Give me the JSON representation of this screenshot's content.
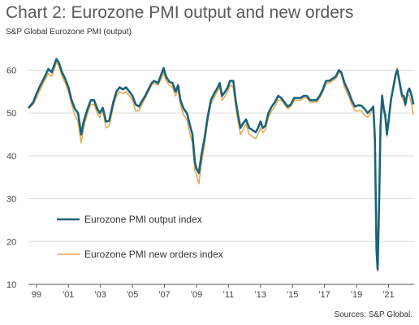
{
  "chart_data": {
    "type": "line",
    "title": "Chart 2: Eurozone PMI output and new orders",
    "subtitle": "S&P Global Eurozone PMI (output)",
    "source": "Sources: S&P Global.",
    "ylim": [
      10,
      65
    ],
    "yticks": [
      10,
      20,
      30,
      40,
      50,
      60
    ],
    "xlim": [
      1998.5,
      2022.6
    ],
    "xticks": [
      {
        "value": 1999,
        "label": "99"
      },
      {
        "value": 2001,
        "label": "'01"
      },
      {
        "value": 2003,
        "label": "'03"
      },
      {
        "value": 2005,
        "label": "'05"
      },
      {
        "value": 2007,
        "label": "'07"
      },
      {
        "value": 2009,
        "label": "'09"
      },
      {
        "value": 2011,
        "label": "'11"
      },
      {
        "value": 2013,
        "label": "'13"
      },
      {
        "value": 2015,
        "label": "'15"
      },
      {
        "value": 2017,
        "label": "'17"
      },
      {
        "value": 2019,
        "label": "'19"
      },
      {
        "value": 2021,
        "label": "'21"
      }
    ],
    "grid": "horizontal",
    "legend_position": "left-middle",
    "series": [
      {
        "name": "Eurozone PMI output index",
        "color": "#1b6378",
        "points": [
          [
            1998.5,
            51.2
          ],
          [
            1998.8,
            52.5
          ],
          [
            1999.0,
            54.5
          ],
          [
            1999.25,
            56.5
          ],
          [
            1999.5,
            58.3
          ],
          [
            1999.75,
            60.3
          ],
          [
            1999.95,
            59.5
          ],
          [
            2000.1,
            61.0
          ],
          [
            2000.25,
            62.6
          ],
          [
            2000.4,
            61.8
          ],
          [
            2000.6,
            59.5
          ],
          [
            2000.8,
            58.0
          ],
          [
            2001.0,
            56.0
          ],
          [
            2001.2,
            53.0
          ],
          [
            2001.4,
            51.0
          ],
          [
            2001.6,
            50.0
          ],
          [
            2001.8,
            45.0
          ],
          [
            2001.95,
            48.0
          ],
          [
            2002.2,
            51.0
          ],
          [
            2002.4,
            53.0
          ],
          [
            2002.6,
            53.0
          ],
          [
            2002.8,
            51.0
          ],
          [
            2002.95,
            50.0
          ],
          [
            2003.15,
            51.2
          ],
          [
            2003.35,
            48.0
          ],
          [
            2003.55,
            48.2
          ],
          [
            2003.8,
            52.5
          ],
          [
            2004.0,
            55.0
          ],
          [
            2004.2,
            56.0
          ],
          [
            2004.4,
            55.5
          ],
          [
            2004.6,
            56.0
          ],
          [
            2004.8,
            55.0
          ],
          [
            2005.0,
            54.0
          ],
          [
            2005.2,
            52.0
          ],
          [
            2005.4,
            51.5
          ],
          [
            2005.6,
            52.8
          ],
          [
            2005.8,
            54.0
          ],
          [
            2006.0,
            55.5
          ],
          [
            2006.2,
            57.0
          ],
          [
            2006.35,
            57.5
          ],
          [
            2006.6,
            57.0
          ],
          [
            2006.8,
            59.0
          ],
          [
            2006.95,
            60.5
          ],
          [
            2007.1,
            58.5
          ],
          [
            2007.3,
            57.3
          ],
          [
            2007.5,
            57.0
          ],
          [
            2007.7,
            55.0
          ],
          [
            2007.85,
            56.5
          ],
          [
            2008.0,
            53.0
          ],
          [
            2008.2,
            51.0
          ],
          [
            2008.4,
            50.0
          ],
          [
            2008.6,
            47.0
          ],
          [
            2008.75,
            45.0
          ],
          [
            2008.9,
            38.5
          ],
          [
            2009.0,
            37.0
          ],
          [
            2009.15,
            36.0
          ],
          [
            2009.3,
            40.0
          ],
          [
            2009.5,
            44.0
          ],
          [
            2009.7,
            49.0
          ],
          [
            2009.9,
            53.0
          ],
          [
            2010.1,
            54.5
          ],
          [
            2010.3,
            55.8
          ],
          [
            2010.45,
            57.0
          ],
          [
            2010.6,
            54.0
          ],
          [
            2010.8,
            55.0
          ],
          [
            2010.95,
            56.0
          ],
          [
            2011.1,
            57.5
          ],
          [
            2011.3,
            57.5
          ],
          [
            2011.45,
            53.0
          ],
          [
            2011.6,
            49.5
          ],
          [
            2011.75,
            46.5
          ],
          [
            2011.9,
            47.5
          ],
          [
            2012.1,
            48.5
          ],
          [
            2012.3,
            46.5
          ],
          [
            2012.5,
            46.0
          ],
          [
            2012.7,
            45.5
          ],
          [
            2012.85,
            46.5
          ],
          [
            2013.0,
            48.0
          ],
          [
            2013.15,
            46.5
          ],
          [
            2013.3,
            47.0
          ],
          [
            2013.5,
            50.0
          ],
          [
            2013.7,
            51.5
          ],
          [
            2013.9,
            52.5
          ],
          [
            2014.1,
            54.0
          ],
          [
            2014.3,
            53.5
          ],
          [
            2014.5,
            52.5
          ],
          [
            2014.7,
            51.5
          ],
          [
            2014.9,
            52.0
          ],
          [
            2015.1,
            53.5
          ],
          [
            2015.3,
            53.5
          ],
          [
            2015.5,
            53.5
          ],
          [
            2015.7,
            54.0
          ],
          [
            2015.9,
            54.0
          ],
          [
            2016.1,
            53.0
          ],
          [
            2016.3,
            53.0
          ],
          [
            2016.5,
            53.0
          ],
          [
            2016.7,
            54.0
          ],
          [
            2016.9,
            55.5
          ],
          [
            2017.1,
            57.5
          ],
          [
            2017.3,
            57.5
          ],
          [
            2017.5,
            58.0
          ],
          [
            2017.7,
            58.5
          ],
          [
            2017.9,
            60.0
          ],
          [
            2018.05,
            59.5
          ],
          [
            2018.25,
            57.0
          ],
          [
            2018.5,
            55.0
          ],
          [
            2018.7,
            53.0
          ],
          [
            2018.9,
            51.5
          ],
          [
            2019.1,
            51.8
          ],
          [
            2019.3,
            51.7
          ],
          [
            2019.5,
            51.0
          ],
          [
            2019.7,
            50.0
          ],
          [
            2019.9,
            50.8
          ],
          [
            2020.05,
            51.5
          ],
          [
            2020.15,
            44.0
          ],
          [
            2020.25,
            18.0
          ],
          [
            2020.32,
            13.5
          ],
          [
            2020.42,
            30.0
          ],
          [
            2020.5,
            47.0
          ],
          [
            2020.6,
            54.0
          ],
          [
            2020.7,
            51.0
          ],
          [
            2020.8,
            49.5
          ],
          [
            2020.9,
            45.0
          ],
          [
            2021.0,
            48.0
          ],
          [
            2021.15,
            53.0
          ],
          [
            2021.3,
            56.0
          ],
          [
            2021.45,
            59.0
          ],
          [
            2021.55,
            60.0
          ],
          [
            2021.7,
            57.0
          ],
          [
            2021.85,
            54.0
          ],
          [
            2021.95,
            54.0
          ],
          [
            2022.05,
            52.0
          ],
          [
            2022.2,
            55.0
          ],
          [
            2022.3,
            55.7
          ],
          [
            2022.45,
            54.0
          ],
          [
            2022.55,
            52.0
          ]
        ]
      },
      {
        "name": "Eurozone PMI new orders index",
        "color": "#e3a74f",
        "points": [
          [
            1998.5,
            51.0
          ],
          [
            1998.8,
            52.0
          ],
          [
            1999.0,
            53.5
          ],
          [
            1999.25,
            55.5
          ],
          [
            1999.5,
            57.5
          ],
          [
            1999.75,
            59.2
          ],
          [
            1999.95,
            58.5
          ],
          [
            2000.1,
            60.0
          ],
          [
            2000.25,
            61.8
          ],
          [
            2000.4,
            61.0
          ],
          [
            2000.6,
            58.5
          ],
          [
            2000.8,
            57.0
          ],
          [
            2001.0,
            55.0
          ],
          [
            2001.2,
            52.0
          ],
          [
            2001.4,
            49.5
          ],
          [
            2001.6,
            48.0
          ],
          [
            2001.8,
            43.0
          ],
          [
            2001.95,
            46.5
          ],
          [
            2002.2,
            50.0
          ],
          [
            2002.4,
            52.0
          ],
          [
            2002.6,
            52.0
          ],
          [
            2002.8,
            50.0
          ],
          [
            2002.95,
            49.0
          ],
          [
            2003.15,
            50.5
          ],
          [
            2003.35,
            46.5
          ],
          [
            2003.55,
            47.0
          ],
          [
            2003.8,
            51.5
          ],
          [
            2004.0,
            54.0
          ],
          [
            2004.2,
            55.0
          ],
          [
            2004.4,
            54.5
          ],
          [
            2004.6,
            55.0
          ],
          [
            2004.8,
            54.0
          ],
          [
            2005.0,
            53.0
          ],
          [
            2005.2,
            50.5
          ],
          [
            2005.4,
            50.5
          ],
          [
            2005.6,
            52.0
          ],
          [
            2005.8,
            53.5
          ],
          [
            2006.0,
            55.0
          ],
          [
            2006.2,
            56.5
          ],
          [
            2006.35,
            57.0
          ],
          [
            2006.6,
            56.5
          ],
          [
            2006.8,
            58.0
          ],
          [
            2006.95,
            59.5
          ],
          [
            2007.1,
            57.5
          ],
          [
            2007.3,
            56.5
          ],
          [
            2007.5,
            56.0
          ],
          [
            2007.7,
            54.0
          ],
          [
            2007.85,
            55.5
          ],
          [
            2008.0,
            52.0
          ],
          [
            2008.2,
            49.5
          ],
          [
            2008.4,
            48.5
          ],
          [
            2008.6,
            45.0
          ],
          [
            2008.75,
            43.0
          ],
          [
            2008.9,
            36.5
          ],
          [
            2009.0,
            35.5
          ],
          [
            2009.15,
            33.5
          ],
          [
            2009.3,
            38.0
          ],
          [
            2009.5,
            42.5
          ],
          [
            2009.7,
            48.0
          ],
          [
            2009.9,
            52.0
          ],
          [
            2010.1,
            53.5
          ],
          [
            2010.3,
            55.0
          ],
          [
            2010.45,
            56.0
          ],
          [
            2010.6,
            53.0
          ],
          [
            2010.8,
            54.0
          ],
          [
            2010.95,
            55.0
          ],
          [
            2011.1,
            56.5
          ],
          [
            2011.3,
            56.0
          ],
          [
            2011.45,
            51.5
          ],
          [
            2011.6,
            48.0
          ],
          [
            2011.75,
            45.0
          ],
          [
            2011.9,
            46.0
          ],
          [
            2012.1,
            47.5
          ],
          [
            2012.3,
            45.0
          ],
          [
            2012.5,
            44.5
          ],
          [
            2012.7,
            44.0
          ],
          [
            2012.85,
            45.0
          ],
          [
            2013.0,
            46.5
          ],
          [
            2013.15,
            45.5
          ],
          [
            2013.3,
            46.0
          ],
          [
            2013.5,
            49.0
          ],
          [
            2013.7,
            50.5
          ],
          [
            2013.9,
            51.5
          ],
          [
            2014.1,
            53.0
          ],
          [
            2014.3,
            53.0
          ],
          [
            2014.5,
            52.0
          ],
          [
            2014.7,
            51.0
          ],
          [
            2014.9,
            51.5
          ],
          [
            2015.1,
            53.0
          ],
          [
            2015.3,
            53.0
          ],
          [
            2015.5,
            53.0
          ],
          [
            2015.7,
            53.5
          ],
          [
            2015.9,
            53.5
          ],
          [
            2016.1,
            52.5
          ],
          [
            2016.3,
            52.5
          ],
          [
            2016.5,
            52.5
          ],
          [
            2016.7,
            53.5
          ],
          [
            2016.9,
            55.0
          ],
          [
            2017.1,
            57.0
          ],
          [
            2017.3,
            57.0
          ],
          [
            2017.5,
            57.5
          ],
          [
            2017.7,
            58.0
          ],
          [
            2017.9,
            59.5
          ],
          [
            2018.05,
            59.0
          ],
          [
            2018.25,
            56.0
          ],
          [
            2018.5,
            54.0
          ],
          [
            2018.7,
            52.0
          ],
          [
            2018.9,
            50.5
          ],
          [
            2019.1,
            50.5
          ],
          [
            2019.3,
            50.5
          ],
          [
            2019.5,
            49.5
          ],
          [
            2019.7,
            49.0
          ],
          [
            2019.9,
            50.0
          ],
          [
            2020.05,
            51.0
          ],
          [
            2020.15,
            42.0
          ],
          [
            2020.25,
            16.0
          ],
          [
            2020.32,
            13.0
          ],
          [
            2020.42,
            29.0
          ],
          [
            2020.5,
            46.5
          ],
          [
            2020.6,
            54.5
          ],
          [
            2020.7,
            50.0
          ],
          [
            2020.8,
            48.5
          ],
          [
            2020.9,
            44.5
          ],
          [
            2021.0,
            47.5
          ],
          [
            2021.15,
            52.5
          ],
          [
            2021.3,
            56.5
          ],
          [
            2021.45,
            59.5
          ],
          [
            2021.55,
            60.5
          ],
          [
            2021.7,
            56.0
          ],
          [
            2021.85,
            53.5
          ],
          [
            2021.95,
            53.0
          ],
          [
            2022.05,
            51.5
          ],
          [
            2022.2,
            54.5
          ],
          [
            2022.3,
            54.0
          ],
          [
            2022.45,
            52.0
          ],
          [
            2022.55,
            49.5
          ]
        ]
      }
    ]
  }
}
